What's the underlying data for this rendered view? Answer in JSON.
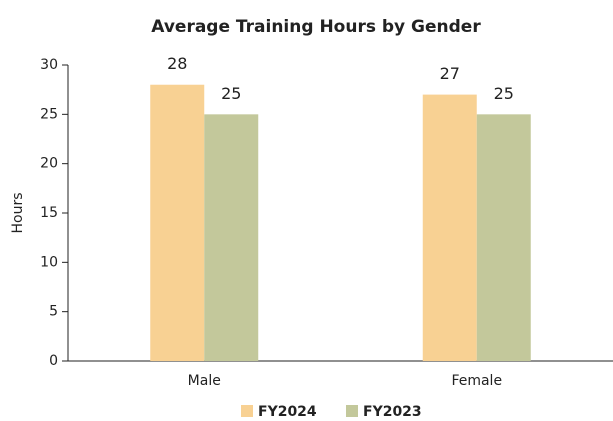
{
  "chart_data": {
    "type": "bar",
    "title": "Average Training Hours by Gender",
    "y_label": "Hours",
    "categories": [
      "Male",
      "Female"
    ],
    "series": [
      {
        "name": "FY2024",
        "color": "#f8d193",
        "values": [
          28,
          27
        ]
      },
      {
        "name": "FY2023",
        "color": "#c3c89b",
        "values": [
          25,
          25
        ]
      }
    ],
    "ylim": [
      0,
      30
    ],
    "yticks": [
      0,
      5,
      10,
      15,
      20,
      25,
      30
    ],
    "grid": false,
    "legend": "bottom"
  }
}
